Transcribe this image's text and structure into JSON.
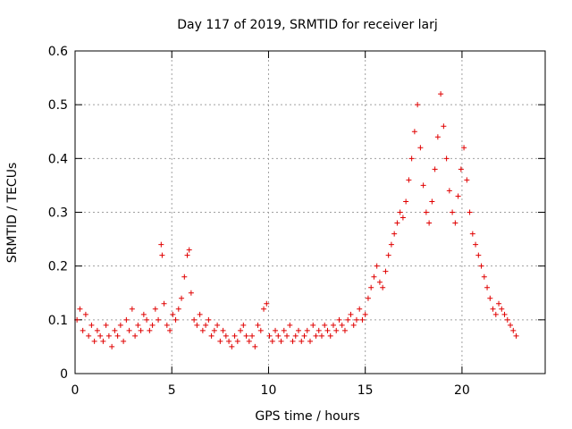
{
  "chart_data": {
    "type": "scatter",
    "title": "Day 117 of 2019, SRMTID for receiver larj",
    "xlabel": "GPS time / hours",
    "ylabel": "SRMTID / TECUs",
    "xlim": [
      0,
      24.3
    ],
    "ylim": [
      0,
      0.6
    ],
    "xticks": [
      0,
      5,
      10,
      15,
      20
    ],
    "yticks": [
      0,
      0.1,
      0.2,
      0.3,
      0.4,
      0.5,
      0.6
    ],
    "grid": true,
    "marker": "plus",
    "series": [
      {
        "name": "SRMTID",
        "color": "#e00000",
        "approximate": true,
        "x": [
          0.1,
          0.25,
          0.4,
          0.55,
          0.7,
          0.85,
          1.0,
          1.15,
          1.3,
          1.45,
          1.6,
          1.75,
          1.9,
          2.05,
          2.2,
          2.35,
          2.5,
          2.65,
          2.8,
          2.95,
          3.1,
          3.25,
          3.4,
          3.55,
          3.7,
          3.85,
          4.0,
          4.15,
          4.3,
          4.45,
          4.5,
          4.6,
          4.75,
          4.9,
          5.05,
          5.2,
          5.35,
          5.5,
          5.65,
          5.8,
          5.9,
          6.0,
          6.15,
          6.3,
          6.45,
          6.6,
          6.75,
          6.9,
          7.05,
          7.2,
          7.35,
          7.5,
          7.65,
          7.8,
          7.95,
          8.1,
          8.25,
          8.4,
          8.55,
          8.7,
          8.85,
          9.0,
          9.15,
          9.3,
          9.45,
          9.6,
          9.75,
          9.9,
          10.05,
          10.2,
          10.35,
          10.5,
          10.65,
          10.8,
          10.95,
          11.1,
          11.25,
          11.4,
          11.55,
          11.7,
          11.85,
          12.0,
          12.15,
          12.3,
          12.45,
          12.6,
          12.75,
          12.9,
          13.05,
          13.2,
          13.35,
          13.5,
          13.65,
          13.8,
          13.95,
          14.1,
          14.25,
          14.4,
          14.55,
          14.7,
          14.85,
          15.0,
          15.15,
          15.3,
          15.45,
          15.6,
          15.75,
          15.9,
          16.05,
          16.2,
          16.35,
          16.5,
          16.65,
          16.8,
          16.95,
          17.1,
          17.25,
          17.4,
          17.55,
          17.7,
          17.85,
          18.0,
          18.15,
          18.3,
          18.45,
          18.6,
          18.75,
          18.9,
          19.05,
          19.2,
          19.35,
          19.5,
          19.65,
          19.8,
          19.95,
          20.1,
          20.25,
          20.4,
          20.55,
          20.7,
          20.85,
          21.0,
          21.15,
          21.3,
          21.45,
          21.6,
          21.75,
          21.9,
          22.05,
          22.2,
          22.35,
          22.5,
          22.65,
          22.8
        ],
        "y": [
          0.1,
          0.12,
          0.08,
          0.11,
          0.07,
          0.09,
          0.06,
          0.08,
          0.07,
          0.06,
          0.09,
          0.07,
          0.05,
          0.08,
          0.07,
          0.09,
          0.06,
          0.1,
          0.08,
          0.12,
          0.07,
          0.09,
          0.08,
          0.11,
          0.1,
          0.08,
          0.09,
          0.12,
          0.1,
          0.24,
          0.22,
          0.13,
          0.09,
          0.08,
          0.11,
          0.1,
          0.12,
          0.14,
          0.18,
          0.22,
          0.23,
          0.15,
          0.1,
          0.09,
          0.11,
          0.08,
          0.09,
          0.1,
          0.07,
          0.08,
          0.09,
          0.06,
          0.08,
          0.07,
          0.06,
          0.05,
          0.07,
          0.06,
          0.08,
          0.09,
          0.07,
          0.06,
          0.07,
          0.05,
          0.09,
          0.08,
          0.12,
          0.13,
          0.07,
          0.06,
          0.08,
          0.07,
          0.06,
          0.08,
          0.07,
          0.09,
          0.06,
          0.07,
          0.08,
          0.06,
          0.07,
          0.08,
          0.06,
          0.09,
          0.07,
          0.08,
          0.07,
          0.09,
          0.08,
          0.07,
          0.09,
          0.08,
          0.1,
          0.09,
          0.08,
          0.1,
          0.11,
          0.09,
          0.1,
          0.12,
          0.1,
          0.11,
          0.14,
          0.16,
          0.18,
          0.2,
          0.17,
          0.16,
          0.19,
          0.22,
          0.24,
          0.26,
          0.28,
          0.3,
          0.29,
          0.32,
          0.36,
          0.4,
          0.45,
          0.5,
          0.42,
          0.35,
          0.3,
          0.28,
          0.32,
          0.38,
          0.44,
          0.52,
          0.46,
          0.4,
          0.34,
          0.3,
          0.28,
          0.33,
          0.38,
          0.42,
          0.36,
          0.3,
          0.26,
          0.24,
          0.22,
          0.2,
          0.18,
          0.16,
          0.14,
          0.12,
          0.11,
          0.13,
          0.12,
          0.11,
          0.1,
          0.09,
          0.08,
          0.07
        ]
      }
    ]
  }
}
